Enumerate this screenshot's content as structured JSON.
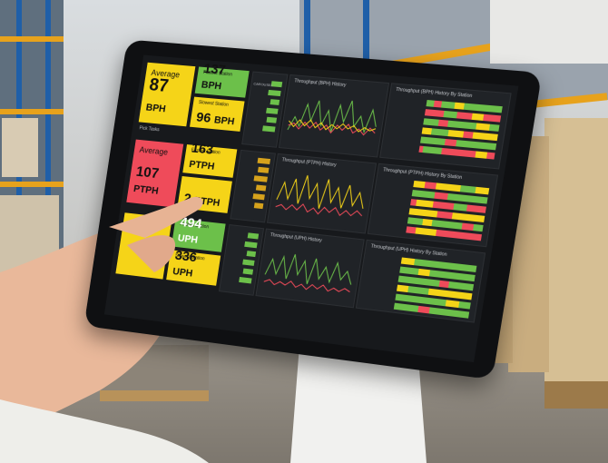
{
  "dashboard": {
    "row1": {
      "average_label": "Average",
      "average_value": "87",
      "average_unit": "BPH",
      "fastest_label": "Fastest Station",
      "fastest_value": "137",
      "fastest_unit": "BPH",
      "slowest_label": "Slowest Station",
      "slowest_value": "96",
      "slowest_unit": "BPH",
      "history_title": "Throughput (BPH) History",
      "station_title": "Throughput (BPH) History By Station",
      "pick_tasks": "Pick Tasks"
    },
    "row2": {
      "average_label": "Average",
      "average_value": "107",
      "average_unit": "PTPH",
      "fastest_label": "Fastest Station",
      "fastest_value": "163",
      "fastest_unit": "PTPH",
      "slowest_value": "2",
      "slowest_unit": "PTPH",
      "history_title": "Throughput (PTPH) History",
      "station_title": "Throughput (PTPH) History By Station"
    },
    "row3": {
      "fastest_label": "Fastest Station",
      "fastest_value": "494",
      "fastest_unit": "UPH",
      "slowest_label": "Slowest Station",
      "slowest_value": "336",
      "slowest_unit": "UPH",
      "history_title": "Throughput (UPH) History",
      "station_title": "Throughput (UPH) History By Station"
    },
    "station_label": "CAROUSEL",
    "colors": {
      "yellow": "#f5d418",
      "green": "#6cc04a",
      "red": "#ef4b5a",
      "dark": "#17191c"
    }
  }
}
